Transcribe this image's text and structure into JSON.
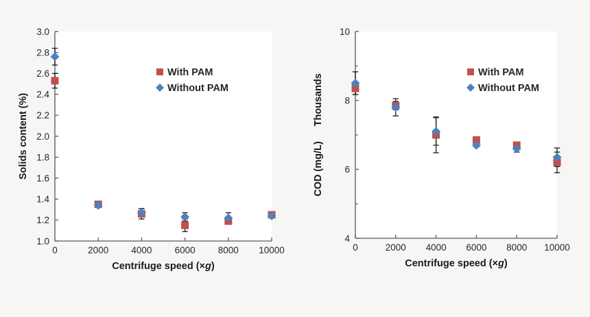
{
  "figure": {
    "description": "Two scatter charts comparing centrifuge speed effects with and without PAM",
    "legend": {
      "with_pam_label": "With PAM",
      "without_pam_label": "Without PAM",
      "with_pam_color": "#c0504d",
      "without_pam_color": "#4f81bd"
    }
  },
  "chart_data": [
    {
      "type": "scatter",
      "name": "solids-content-chart",
      "title": "",
      "xlabel": "Centrifuge speed (×g)",
      "ylabel": "Solids content (%)",
      "ylabel_units": "",
      "xlim": [
        0,
        10000
      ],
      "ylim": [
        1.0,
        3.0
      ],
      "grid": false,
      "legend_position": "upper-center",
      "x": [
        0,
        2000,
        4000,
        6000,
        8000,
        10000
      ],
      "xtick_labels": [
        "0",
        "2000",
        "4000",
        "6000",
        "8000",
        "10000"
      ],
      "yticks": [
        1.0,
        1.2,
        1.4,
        1.6,
        1.8,
        2.0,
        2.2,
        2.4,
        2.6,
        2.8,
        3.0
      ],
      "ytick_labels": [
        "1.0",
        "1.2",
        "1.4",
        "1.6",
        "1.8",
        "2.0",
        "2.2",
        "2.4",
        "2.6",
        "2.8",
        "3.0"
      ],
      "yminor": [],
      "error_bar_color": "#1c1c1c",
      "series": [
        {
          "name": "With PAM",
          "marker": "square",
          "color": "#c0504d",
          "values": [
            2.53,
            1.35,
            1.26,
            1.15,
            1.19,
            1.25
          ],
          "yerr": [
            0.07,
            0.02,
            0.05,
            0.06,
            0.03,
            0.02
          ]
        },
        {
          "name": "Without PAM",
          "marker": "diamond",
          "color": "#4f81bd",
          "values": [
            2.76,
            1.34,
            1.27,
            1.23,
            1.22,
            1.24
          ],
          "yerr": [
            0.08,
            0.02,
            0.04,
            0.04,
            0.05,
            0.02
          ]
        }
      ]
    },
    {
      "type": "scatter",
      "name": "cod-chart",
      "title": "",
      "xlabel": "Centrifuge speed (×g)",
      "ylabel": "COD (mg/L)",
      "ylabel_units": "Thousands",
      "xlim": [
        0,
        10000
      ],
      "ylim": [
        4,
        10
      ],
      "grid": false,
      "legend_position": "upper-center",
      "x": [
        0,
        2000,
        4000,
        6000,
        8000,
        10000
      ],
      "xtick_labels": [
        "0",
        "2000",
        "4000",
        "6000",
        "8000",
        "10000"
      ],
      "yticks": [
        4,
        6,
        8,
        10
      ],
      "ytick_labels": [
        "4",
        "6",
        "8",
        "10"
      ],
      "yminor": [
        5,
        7,
        9
      ],
      "error_bar_color": "#1c1c1c",
      "series": [
        {
          "name": "With PAM",
          "marker": "square",
          "color": "#c0504d",
          "values": [
            8.35,
            7.85,
            7.0,
            6.85,
            6.7,
            6.2
          ],
          "yerr": [
            0.18,
            0.12,
            0.52,
            0.05,
            0.08,
            0.3
          ]
        },
        {
          "name": "Without PAM",
          "marker": "diamond",
          "color": "#4f81bd",
          "values": [
            8.5,
            7.8,
            7.1,
            6.7,
            6.6,
            6.35
          ],
          "yerr": [
            0.33,
            0.25,
            0.4,
            0.05,
            0.1,
            0.27
          ]
        }
      ]
    }
  ]
}
